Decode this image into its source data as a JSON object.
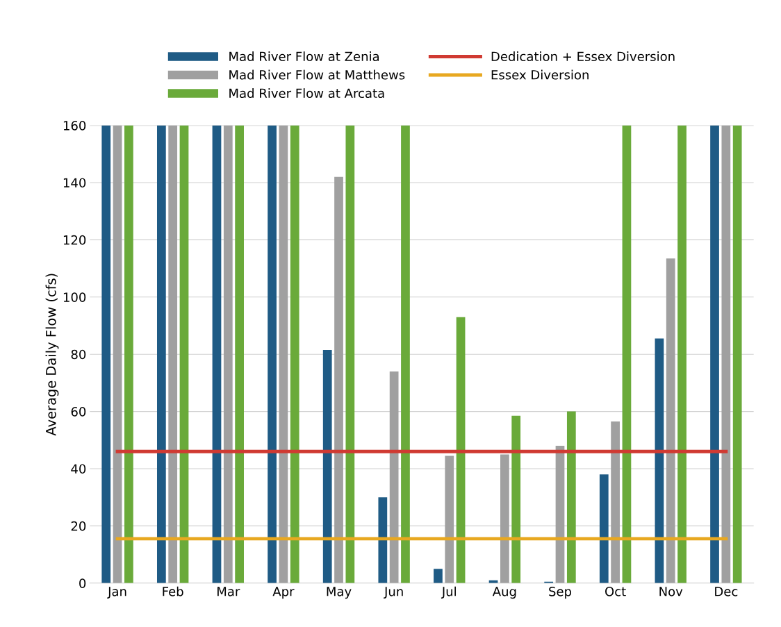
{
  "chart_data": {
    "type": "bar",
    "ylabel": "Average Daily Flow (cfs)",
    "categories": [
      "Jan",
      "Feb",
      "Mar",
      "Apr",
      "May",
      "Jun",
      "Jul",
      "Aug",
      "Sep",
      "Oct",
      "Nov",
      "Dec"
    ],
    "series": [
      {
        "name": "Mad River Flow at Zenia",
        "color": "#1f5b85",
        "values": [
          160,
          160,
          160,
          160,
          81.5,
          30,
          5,
          1,
          0.5,
          38,
          85.5,
          160
        ]
      },
      {
        "name": "Mad River Flow at Matthews",
        "color": "#a0a0a0",
        "values": [
          160,
          160,
          160,
          160,
          142,
          74,
          44.5,
          45,
          48,
          56.5,
          113.5,
          160
        ]
      },
      {
        "name": "Mad River Flow at Arcata",
        "color": "#6aaa3a",
        "values": [
          160,
          160,
          160,
          160,
          160,
          160,
          93,
          58.5,
          60,
          160,
          160,
          160
        ]
      },
      {
        "name": "Dedication + Essex Diversion",
        "type": "line",
        "color": "#d03a32",
        "values": [
          46,
          46,
          46,
          46,
          46,
          46,
          46,
          46,
          46,
          46,
          46,
          46
        ]
      },
      {
        "name": "Essex Diversion",
        "type": "line",
        "color": "#e8a820",
        "values": [
          15.5,
          15.5,
          15.5,
          15.5,
          15.5,
          15.5,
          15.5,
          15.5,
          15.5,
          15.5,
          15.5,
          15.5
        ]
      }
    ],
    "ylim": [
      0,
      160
    ],
    "yticks": [
      0,
      20,
      40,
      60,
      80,
      100,
      120,
      140,
      160
    ],
    "grid": "y",
    "legend": "top",
    "marker": "none"
  }
}
